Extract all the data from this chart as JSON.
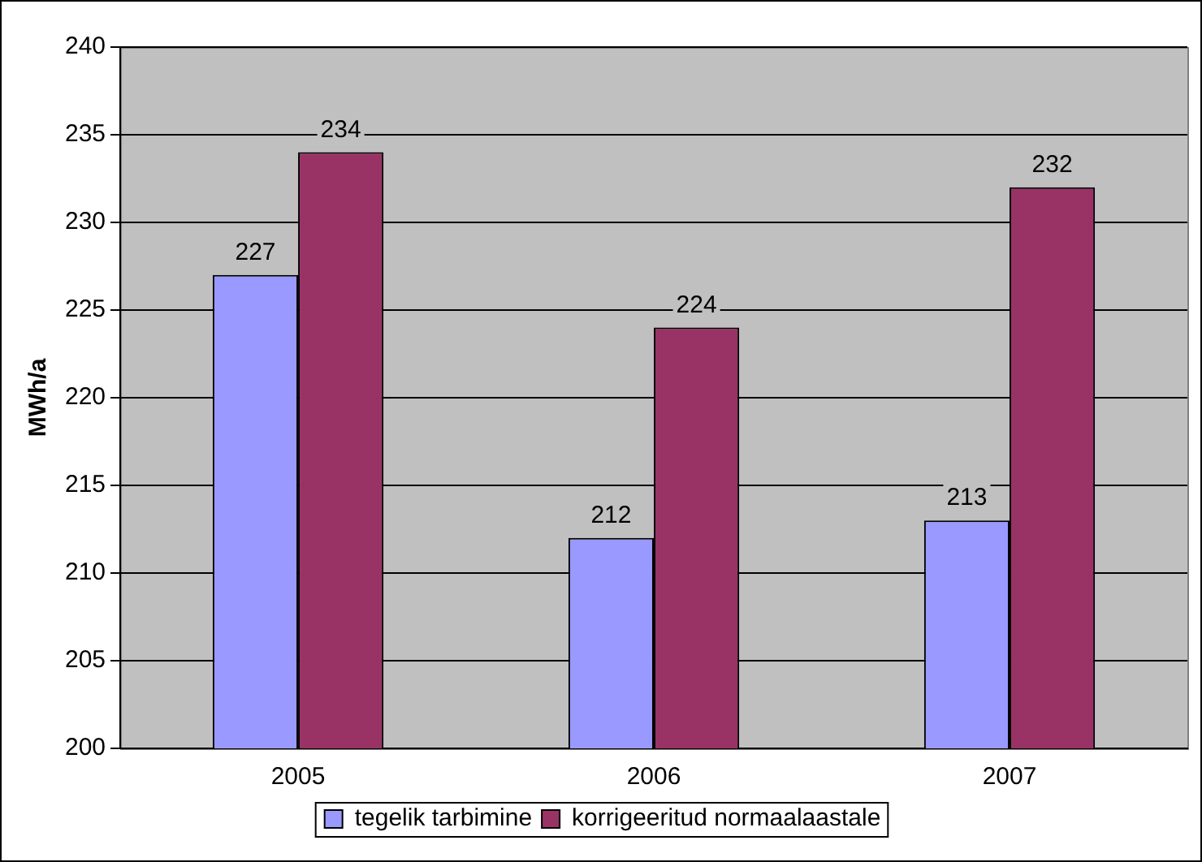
{
  "chart_data": {
    "type": "bar",
    "ylabel": "MWh/a",
    "categories": [
      "2005",
      "2006",
      "2007"
    ],
    "series": [
      {
        "name": "tegelik tarbimine",
        "color": "#9999ff",
        "values": [
          227,
          212,
          213
        ]
      },
      {
        "name": "korrigeeritud normaalaastale",
        "color": "#993366",
        "values": [
          234,
          224,
          232
        ]
      }
    ],
    "ylim": [
      200,
      240
    ],
    "yticks": [
      200,
      205,
      210,
      215,
      220,
      225,
      230,
      235,
      240
    ],
    "grid": "y",
    "legend": "bottom",
    "data_labels": true
  }
}
